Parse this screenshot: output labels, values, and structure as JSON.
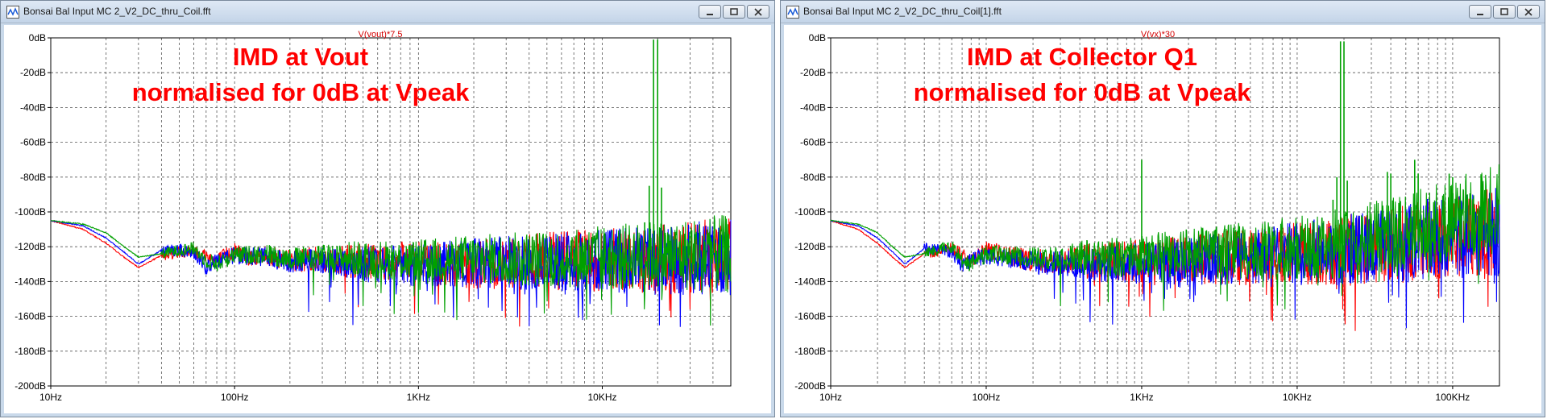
{
  "windows": [
    {
      "title": "Bonsai Bal Input MC 2_V2_DC_thru_Coil.fft",
      "trace_label": "V(vout)*7.5",
      "annotation": [
        "IMD at Vout",
        "normalised for 0dB at Vpeak"
      ]
    },
    {
      "title": "Bonsai Bal Input MC 2_V2_DC_thru_Coil[1].fft",
      "trace_label": "V(vx)*30",
      "annotation": [
        "IMD at Collector Q1",
        "normalised for 0dB at Vpeak"
      ]
    }
  ],
  "chart_data": [
    {
      "type": "line",
      "x_scale": "log",
      "xlim": [
        10,
        50000
      ],
      "ylim": [
        -200,
        0
      ],
      "grid": true,
      "x_tick_labels": [
        "10Hz",
        "100Hz",
        "1KHz",
        "10KHz"
      ],
      "y_tick_labels": [
        "0dB",
        "-20dB",
        "-40dB",
        "-60dB",
        "-80dB",
        "-100dB",
        "-120dB",
        "-140dB",
        "-160dB",
        "-180dB",
        "-200dB"
      ],
      "series": [
        {
          "color": "#ff0000",
          "points": [
            [
              10,
              -105
            ],
            [
              15,
              -110
            ],
            [
              20,
              -118
            ],
            [
              25,
              -126
            ],
            [
              30,
              -132
            ],
            [
              40,
              -125
            ],
            [
              50,
              -123
            ],
            [
              60,
              -122
            ],
            [
              80,
              -128
            ],
            [
              100,
              -122
            ],
            [
              120,
              -126
            ],
            [
              150,
              -125
            ],
            [
              200,
              -128
            ],
            [
              300,
              -127
            ],
            [
              500,
              -128
            ],
            [
              1000,
              -129
            ],
            [
              2000,
              -130
            ],
            [
              5000,
              -128
            ],
            [
              10000,
              -128
            ],
            [
              20000,
              -127
            ],
            [
              40000,
              -126
            ]
          ]
        },
        {
          "color": "#0000ff",
          "points": [
            [
              10,
              -105
            ],
            [
              15,
              -108
            ],
            [
              20,
              -115
            ],
            [
              25,
              -123
            ],
            [
              30,
              -130
            ],
            [
              40,
              -122
            ],
            [
              50,
              -122
            ],
            [
              60,
              -123
            ],
            [
              70,
              -132
            ],
            [
              80,
              -128
            ],
            [
              100,
              -125
            ],
            [
              150,
              -126
            ],
            [
              200,
              -129
            ],
            [
              300,
              -128
            ],
            [
              500,
              -130
            ],
            [
              1000,
              -131
            ],
            [
              2000,
              -129
            ],
            [
              5000,
              -129
            ],
            [
              10000,
              -128
            ],
            [
              20000,
              -127
            ],
            [
              40000,
              -126
            ]
          ]
        },
        {
          "color": "#00a000",
          "points": [
            [
              10,
              -105
            ],
            [
              15,
              -107
            ],
            [
              20,
              -112
            ],
            [
              25,
              -120
            ],
            [
              30,
              -126
            ],
            [
              40,
              -124
            ],
            [
              50,
              -122
            ],
            [
              60,
              -121
            ],
            [
              70,
              -128
            ],
            [
              80,
              -130
            ],
            [
              100,
              -125
            ],
            [
              150,
              -124
            ],
            [
              200,
              -127
            ],
            [
              300,
              -126
            ],
            [
              500,
              -127
            ],
            [
              1000,
              -128
            ],
            [
              2000,
              -127
            ],
            [
              5000,
              -127
            ],
            [
              10000,
              -126
            ],
            [
              20000,
              -125
            ],
            [
              40000,
              -124
            ]
          ],
          "peaks": [
            [
              17000,
              -106
            ],
            [
              18000,
              -85
            ],
            [
              19000,
              -1
            ],
            [
              20000,
              -1
            ],
            [
              21000,
              -86
            ],
            [
              22000,
              -112
            ]
          ]
        }
      ]
    },
    {
      "type": "line",
      "x_scale": "log",
      "xlim": [
        10,
        200000
      ],
      "ylim": [
        -200,
        0
      ],
      "grid": true,
      "x_tick_labels": [
        "10Hz",
        "100Hz",
        "1KHz",
        "10KHz",
        "100KHz"
      ],
      "y_tick_labels": [
        "0dB",
        "-20dB",
        "-40dB",
        "-60dB",
        "-80dB",
        "-100dB",
        "-120dB",
        "-140dB",
        "-160dB",
        "-180dB",
        "-200dB"
      ],
      "series": [
        {
          "color": "#ff0000",
          "points": [
            [
              10,
              -105
            ],
            [
              15,
              -110
            ],
            [
              20,
              -118
            ],
            [
              25,
              -126
            ],
            [
              30,
              -132
            ],
            [
              40,
              -124
            ],
            [
              50,
              -122
            ],
            [
              60,
              -121
            ],
            [
              80,
              -128
            ],
            [
              100,
              -122
            ],
            [
              200,
              -128
            ],
            [
              500,
              -128
            ],
            [
              1000,
              -128
            ],
            [
              2000,
              -127
            ],
            [
              5000,
              -126
            ],
            [
              10000,
              -124
            ],
            [
              20000,
              -122
            ],
            [
              50000,
              -118
            ],
            [
              100000,
              -115
            ],
            [
              200000,
              -112
            ]
          ]
        },
        {
          "color": "#0000ff",
          "points": [
            [
              10,
              -105
            ],
            [
              15,
              -108
            ],
            [
              20,
              -115
            ],
            [
              25,
              -123
            ],
            [
              30,
              -130
            ],
            [
              40,
              -121
            ],
            [
              50,
              -122
            ],
            [
              60,
              -123
            ],
            [
              70,
              -131
            ],
            [
              80,
              -128
            ],
            [
              100,
              -125
            ],
            [
              200,
              -129
            ],
            [
              500,
              -130
            ],
            [
              1000,
              -129
            ],
            [
              2000,
              -128
            ],
            [
              5000,
              -126
            ],
            [
              10000,
              -124
            ],
            [
              20000,
              -122
            ],
            [
              50000,
              -118
            ],
            [
              100000,
              -114
            ],
            [
              200000,
              -112
            ]
          ]
        },
        {
          "color": "#00a000",
          "points": [
            [
              10,
              -105
            ],
            [
              15,
              -107
            ],
            [
              20,
              -112
            ],
            [
              25,
              -120
            ],
            [
              30,
              -126
            ],
            [
              40,
              -124
            ],
            [
              50,
              -121
            ],
            [
              60,
              -120
            ],
            [
              70,
              -128
            ],
            [
              80,
              -130
            ],
            [
              100,
              -124
            ],
            [
              200,
              -126
            ],
            [
              500,
              -126
            ],
            [
              1000,
              -125
            ],
            [
              2000,
              -124
            ],
            [
              5000,
              -122
            ],
            [
              10000,
              -120
            ],
            [
              20000,
              -118
            ],
            [
              50000,
              -112
            ],
            [
              100000,
              -105
            ],
            [
              200000,
              -98
            ]
          ],
          "peaks": [
            [
              1000,
              -70
            ],
            [
              17000,
              -93
            ],
            [
              18000,
              -80
            ],
            [
              19000,
              -2
            ],
            [
              20000,
              -2
            ],
            [
              21000,
              -82
            ],
            [
              38000,
              -77
            ],
            [
              40000,
              -78
            ],
            [
              57000,
              -70
            ],
            [
              60000,
              -78
            ],
            [
              95000,
              -78
            ],
            [
              100000,
              -80
            ]
          ]
        }
      ]
    }
  ]
}
